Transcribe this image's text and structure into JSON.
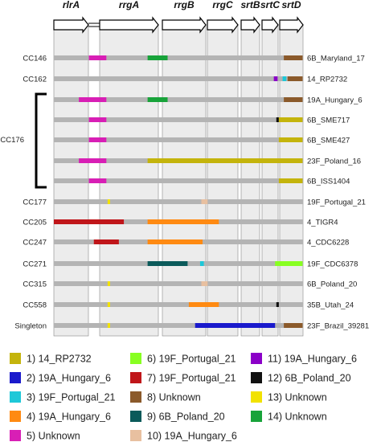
{
  "genes": [
    "rlrA",
    "rrgA",
    "rrgB",
    "rrgC",
    "srtB",
    "srtC",
    "srtD"
  ],
  "rows": [
    {
      "cc": "CC146",
      "strain": "6B_Maryland_17",
      "blocks": [
        {
          "start": 0.28,
          "end": 0.42,
          "color": "#d81fb5"
        },
        {
          "start": 0.75,
          "end": 0.91,
          "color": "#18a33a"
        },
        {
          "start": 1.84,
          "end": 1.99,
          "color": "#8b5a2b"
        }
      ]
    },
    {
      "cc": "CC162",
      "strain": "14_RP2732",
      "blocks": [
        {
          "start": 1.76,
          "end": 1.79,
          "color": "#8b00c8"
        },
        {
          "start": 1.83,
          "end": 1.86,
          "color": "#1ec8d8"
        },
        {
          "start": 1.87,
          "end": 1.99,
          "color": "#8b5a2b"
        }
      ]
    },
    {
      "cc": "",
      "strain": "19A_Hungary_6",
      "blocks": [
        {
          "start": 0.2,
          "end": 0.42,
          "color": "#d81fb5"
        },
        {
          "start": 0.75,
          "end": 0.91,
          "color": "#18a33a"
        },
        {
          "start": 1.84,
          "end": 1.99,
          "color": "#8b5a2b"
        }
      ]
    },
    {
      "cc": "",
      "strain": "6B_SME717",
      "blocks": [
        {
          "start": 0.28,
          "end": 0.42,
          "color": "#d81fb5"
        },
        {
          "start": 1.78,
          "end": 1.8,
          "color": "#111111"
        },
        {
          "start": 1.8,
          "end": 1.99,
          "color": "#c4b40c"
        }
      ]
    },
    {
      "cc": "",
      "strain": "6B_SME427",
      "blocks": [
        {
          "start": 0.28,
          "end": 0.42,
          "color": "#d81fb5"
        },
        {
          "start": 1.8,
          "end": 1.99,
          "color": "#c4b40c"
        }
      ]
    },
    {
      "cc": "",
      "strain": "23F_Poland_16",
      "blocks": [
        {
          "start": 0.2,
          "end": 0.42,
          "color": "#d81fb5"
        },
        {
          "start": 0.75,
          "end": 1.99,
          "color": "#c4b40c"
        }
      ]
    },
    {
      "cc": "",
      "strain": "6B_ISS1404",
      "blocks": [
        {
          "start": 0.28,
          "end": 0.42,
          "color": "#d81fb5"
        },
        {
          "start": 1.8,
          "end": 1.99,
          "color": "#c4b40c"
        }
      ]
    },
    {
      "cc": "CC177",
      "strain": "19F_Portugal_21",
      "blocks": [
        {
          "start": 0.43,
          "end": 0.45,
          "color": "#f2e200"
        },
        {
          "start": 1.18,
          "end": 1.23,
          "color": "#e8c0a0"
        }
      ]
    },
    {
      "cc": "CC205",
      "strain": "4_TIGR4",
      "blocks": [
        {
          "start": 0.0,
          "end": 0.56,
          "color": "#c0161a"
        },
        {
          "start": 0.75,
          "end": 1.32,
          "color": "#ff8a12"
        }
      ]
    },
    {
      "cc": "CC247",
      "strain": "4_CDC6228",
      "blocks": [
        {
          "start": 0.32,
          "end": 0.52,
          "color": "#c0161a"
        },
        {
          "start": 0.75,
          "end": 1.19,
          "color": "#ff8a12"
        }
      ]
    },
    {
      "cc": "CC271",
      "strain": "19F_CDC6378",
      "blocks": [
        {
          "start": 0.75,
          "end": 1.07,
          "color": "#0b5a5a"
        },
        {
          "start": 1.17,
          "end": 1.2,
          "color": "#1ec8d8"
        },
        {
          "start": 1.77,
          "end": 1.99,
          "color": "#88ff22"
        }
      ]
    },
    {
      "cc": "CC315",
      "strain": "6B_Poland_20",
      "blocks": [
        {
          "start": 0.43,
          "end": 0.45,
          "color": "#f2e200"
        },
        {
          "start": 1.18,
          "end": 1.23,
          "color": "#e8c0a0"
        }
      ]
    },
    {
      "cc": "CC558",
      "strain": "35B_Utah_24",
      "blocks": [
        {
          "start": 0.43,
          "end": 0.45,
          "color": "#f2e200"
        },
        {
          "start": 1.08,
          "end": 1.32,
          "color": "#ff8a12"
        },
        {
          "start": 1.78,
          "end": 1.8,
          "color": "#111111"
        }
      ]
    },
    {
      "cc": "Singleton",
      "strain": "23F_Brazil_39281",
      "blocks": [
        {
          "start": 0.43,
          "end": 0.45,
          "color": "#f2e200"
        },
        {
          "start": 1.13,
          "end": 1.77,
          "color": "#1a1acc"
        },
        {
          "start": 1.84,
          "end": 1.99,
          "color": "#8b5a2b"
        }
      ]
    }
  ],
  "cc176_label": "CC176",
  "legend": [
    {
      "label": "1) 14_RP2732",
      "color": "#c4b40c"
    },
    {
      "label": "2) 19A_Hungary_6",
      "color": "#1a1acc"
    },
    {
      "label": "3) 19F_Portugal_21",
      "color": "#1ec8d8"
    },
    {
      "label": "4) 19A_Hungary_6",
      "color": "#ff8a12"
    },
    {
      "label": "5) Unknown",
      "color": "#d81fb5"
    },
    {
      "label": "6) 19F_Portugal_21",
      "color": "#88ff22"
    },
    {
      "label": "7) 19F_Portugal_21",
      "color": "#c0161a"
    },
    {
      "label": "8) Unknown",
      "color": "#8b5a2b"
    },
    {
      "label": "9) 6B_Poland_20",
      "color": "#0b5a5a"
    },
    {
      "label": "10) 19A_Hungary_6",
      "color": "#e8c0a0"
    },
    {
      "label": "11) 19A_Hungary_6",
      "color": "#8b00c8"
    },
    {
      "label": "12) 6B_Poland_20",
      "color": "#111111"
    },
    {
      "label": "13) Unknown",
      "color": "#f2e200"
    },
    {
      "label": "14) Unknown",
      "color": "#18a33a"
    }
  ]
}
